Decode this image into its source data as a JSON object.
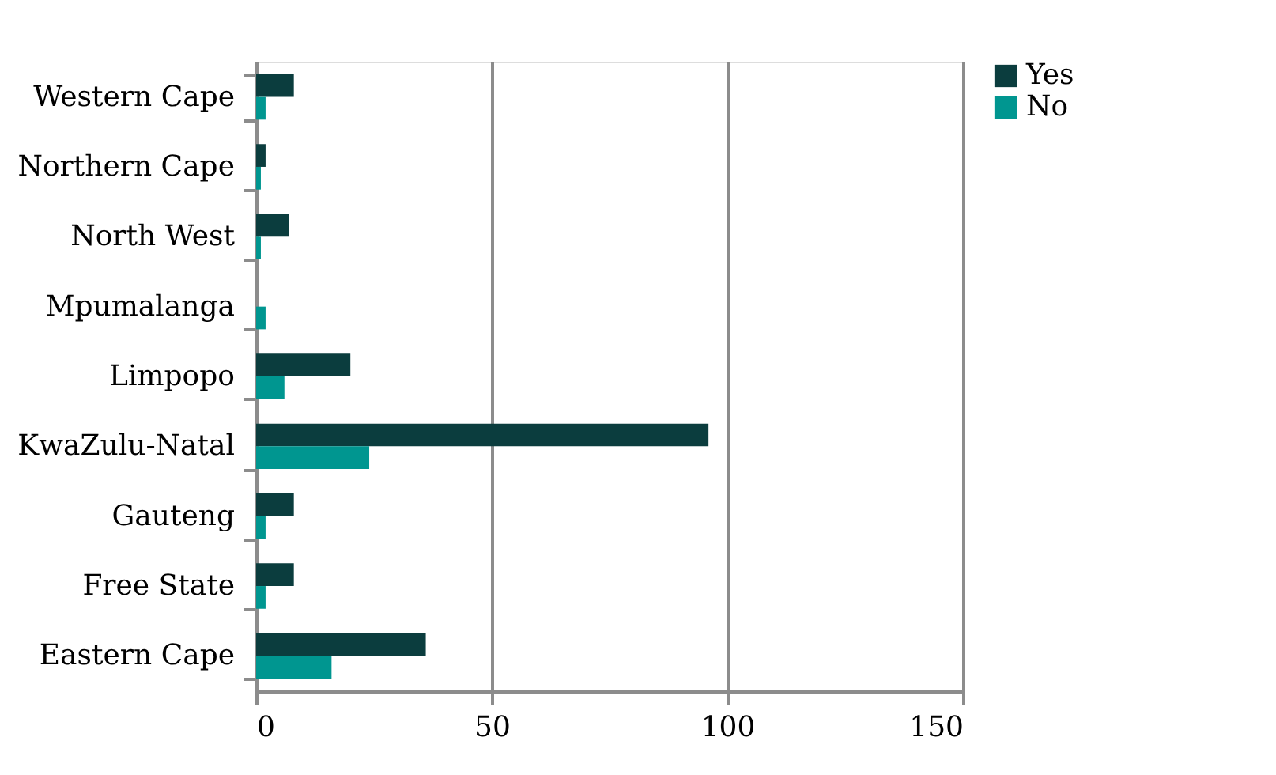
{
  "chart_data": {
    "type": "bar",
    "orientation": "horizontal",
    "categories": [
      "Western Cape",
      "Northern Cape",
      "North West",
      "Mpumalanga",
      "Limpopo",
      "KwaZulu-Natal",
      "Gauteng",
      "Free State",
      "Eastern Cape"
    ],
    "series": [
      {
        "name": "Yes",
        "color": "#0b3d3e",
        "values": [
          8,
          2,
          7,
          0,
          20,
          96,
          8,
          8,
          36
        ]
      },
      {
        "name": "No",
        "color": "#009690",
        "values": [
          2,
          1,
          1,
          2,
          6,
          24,
          2,
          2,
          16
        ]
      }
    ],
    "xlim": [
      0,
      150
    ],
    "xticks": [
      0,
      50,
      100,
      150
    ],
    "grid": "x",
    "legend": "right"
  }
}
